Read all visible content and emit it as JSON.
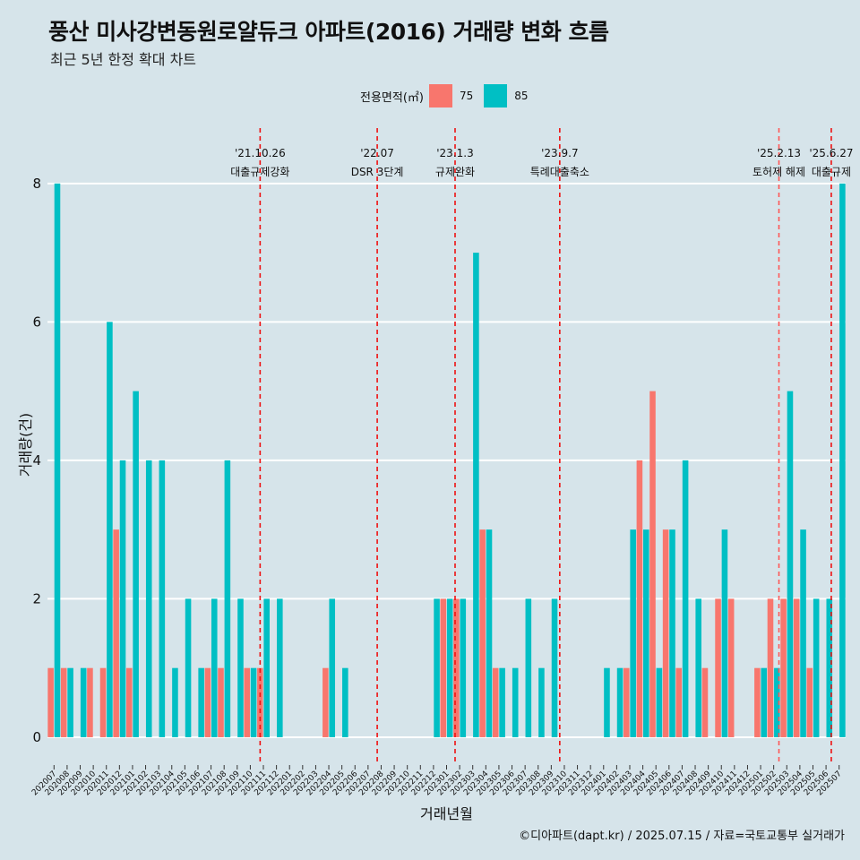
{
  "header": {
    "title": "풍산 미사강변동원로얄듀크 아파트(2016) 거래량 변화 흐름",
    "subtitle": "최근 5년 한정 확대 차트"
  },
  "legend": {
    "title": "전용면적(㎡)",
    "items": [
      {
        "label": "75",
        "color": "#f8766d"
      },
      {
        "label": "85",
        "color": "#00bfc4"
      }
    ]
  },
  "footer": {
    "credit": "©디아파트(dapt.kr) / 2025.07.15 / 자료=국토교통부 실거래가"
  },
  "chart_data": {
    "type": "bar",
    "title": "풍산 미사강변동원로얄듀크 아파트(2016) 거래량 변화 흐름",
    "xlabel": "거래년월",
    "ylabel": "거래량(건)",
    "ylim": [
      -0.35,
      8.8
    ],
    "yticks": [
      0,
      2,
      4,
      6,
      8
    ],
    "categories": [
      "202007",
      "202008",
      "202009",
      "202010",
      "202011",
      "202012",
      "202101",
      "202102",
      "202103",
      "202104",
      "202105",
      "202106",
      "202107",
      "202108",
      "202109",
      "202110",
      "202111",
      "202112",
      "202201",
      "202202",
      "202203",
      "202204",
      "202205",
      "202206",
      "202207",
      "202208",
      "202209",
      "202210",
      "202211",
      "202212",
      "202301",
      "202302",
      "202303",
      "202304",
      "202305",
      "202306",
      "202307",
      "202308",
      "202309",
      "202310",
      "202311",
      "202312",
      "202401",
      "202402",
      "202403",
      "202404",
      "202405",
      "202406",
      "202407",
      "202408",
      "202409",
      "202410",
      "202411",
      "202412",
      "202501",
      "202502",
      "202503",
      "202504",
      "202505",
      "202506",
      "202507"
    ],
    "series": [
      {
        "name": "75",
        "color": "#f8766d",
        "values": [
          1,
          1,
          0,
          1,
          1,
          3,
          1,
          0,
          0,
          0,
          0,
          0,
          1,
          1,
          0,
          1,
          1,
          0,
          0,
          0,
          0,
          1,
          0,
          0,
          0,
          0,
          0,
          0,
          0,
          0,
          2,
          2,
          0,
          3,
          1,
          0,
          0,
          0,
          0,
          0,
          0,
          0,
          0,
          0,
          1,
          4,
          5,
          3,
          1,
          0,
          1,
          2,
          2,
          0,
          1,
          2,
          2,
          2,
          1,
          0,
          0
        ]
      },
      {
        "name": "85",
        "color": "#00bfc4",
        "values": [
          8,
          1,
          1,
          0,
          6,
          4,
          5,
          4,
          4,
          1,
          2,
          1,
          2,
          4,
          2,
          1,
          2,
          2,
          0,
          0,
          0,
          2,
          1,
          0,
          0,
          0,
          0,
          0,
          0,
          2,
          2,
          2,
          7,
          3,
          1,
          1,
          2,
          1,
          2,
          0,
          0,
          0,
          1,
          1,
          3,
          3,
          1,
          3,
          4,
          2,
          0,
          3,
          0,
          0,
          1,
          1,
          5,
          3,
          2,
          2,
          8
        ]
      }
    ],
    "events": [
      {
        "date": "'21.10.26",
        "label": "대출규제강화"
      },
      {
        "date": "'22.07",
        "label": "DSR 3단계"
      },
      {
        "date": "'23.1.3",
        "label": "규제완화"
      },
      {
        "date": "'23.9.7",
        "label": "특례대출축소"
      },
      {
        "date": "'25.2.13",
        "label": "토허제 해제"
      },
      {
        "date": "'25.6.27",
        "label": "대출규제"
      }
    ],
    "event_positions": [
      15.75,
      24.7,
      30.65,
      38.65,
      55.4,
      59.4
    ],
    "event_colors": [
      "#ee1111",
      "#ee1111",
      "#ee1111",
      "#ee1111",
      "#ff5555",
      "#ee1111"
    ]
  }
}
